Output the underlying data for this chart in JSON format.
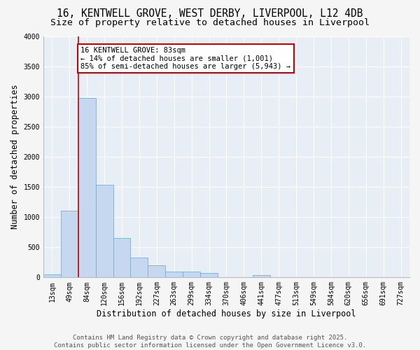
{
  "title_line1": "16, KENTWELL GROVE, WEST DERBY, LIVERPOOL, L12 4DB",
  "title_line2": "Size of property relative to detached houses in Liverpool",
  "xlabel": "Distribution of detached houses by size in Liverpool",
  "ylabel": "Number of detached properties",
  "bar_color": "#c5d8f0",
  "bar_edge_color": "#7aadd4",
  "plot_bg_color": "#e8eef5",
  "fig_bg_color": "#f5f5f5",
  "grid_color": "#ffffff",
  "categories": [
    "13sqm",
    "49sqm",
    "84sqm",
    "120sqm",
    "156sqm",
    "192sqm",
    "227sqm",
    "263sqm",
    "299sqm",
    "334sqm",
    "370sqm",
    "406sqm",
    "441sqm",
    "477sqm",
    "513sqm",
    "549sqm",
    "584sqm",
    "620sqm",
    "656sqm",
    "691sqm",
    "727sqm"
  ],
  "values": [
    55,
    1110,
    2970,
    1530,
    650,
    330,
    200,
    100,
    100,
    75,
    0,
    0,
    35,
    0,
    0,
    0,
    0,
    0,
    0,
    0,
    0
  ],
  "ylim": [
    0,
    4000
  ],
  "yticks": [
    0,
    500,
    1000,
    1500,
    2000,
    2500,
    3000,
    3500,
    4000
  ],
  "property_line_idx": 2,
  "annotation_text": "16 KENTWELL GROVE: 83sqm\n← 14% of detached houses are smaller (1,001)\n85% of semi-detached houses are larger (5,943) →",
  "annotation_box_color": "#cc0000",
  "footer_line1": "Contains HM Land Registry data © Crown copyright and database right 2025.",
  "footer_line2": "Contains public sector information licensed under the Open Government Licence v3.0.",
  "title_fontsize": 10.5,
  "subtitle_fontsize": 9.5,
  "axis_label_fontsize": 8.5,
  "tick_fontsize": 7,
  "annotation_fontsize": 7.5,
  "footer_fontsize": 6.5
}
